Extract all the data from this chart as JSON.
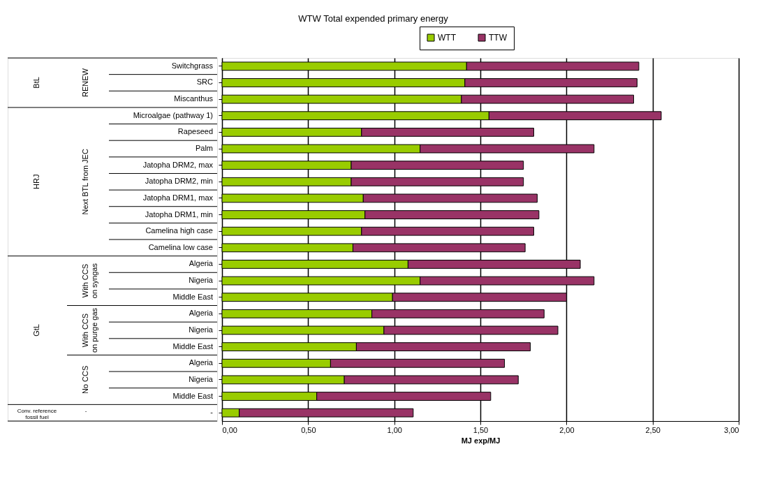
{
  "chart_data": {
    "type": "bar",
    "orientation": "horizontal",
    "stacked": true,
    "title": "WTW Total expended primary energy",
    "xlabel": "MJ exp/MJ",
    "categories": [
      "Switchgrass",
      "SRC",
      "Miscanthus",
      "Microalgae (pathway 1)",
      "Rapeseed",
      "Palm",
      "Jatopha DRM2, max",
      "Jatopha DRM2, min",
      "Jatopha DRM1, max",
      "Jatopha DRM1, min",
      "Camelina high case",
      "Camelina low case",
      "Algeria",
      "Nigeria",
      "Middle East",
      "Algeria",
      "Nigeria",
      "Middle East",
      "Algeria",
      "Nigeria",
      "Middle East",
      "-"
    ],
    "series": [
      {
        "name": "WTT",
        "color": "#99cc00",
        "values": [
          1.42,
          1.41,
          1.39,
          1.55,
          0.81,
          1.15,
          0.75,
          0.75,
          0.82,
          0.83,
          0.81,
          0.76,
          1.08,
          1.15,
          0.99,
          0.87,
          0.94,
          0.78,
          0.63,
          0.71,
          0.55,
          0.1
        ]
      },
      {
        "name": "TTW",
        "color": "#993366",
        "values": [
          1.0,
          1.0,
          1.0,
          1.0,
          1.0,
          1.01,
          1.0,
          1.0,
          1.01,
          1.01,
          1.0,
          1.0,
          1.0,
          1.01,
          1.01,
          1.0,
          1.01,
          1.01,
          1.01,
          1.01,
          1.01,
          1.01
        ]
      }
    ],
    "xlim": [
      0,
      3
    ],
    "xticks": [
      {
        "value": 0,
        "label": "0,00"
      },
      {
        "value": 0.5,
        "label": "0,50"
      },
      {
        "value": 1,
        "label": "1,00"
      },
      {
        "value": 1.5,
        "label": "1,50"
      },
      {
        "value": 2,
        "label": "2,00"
      },
      {
        "value": 2.5,
        "label": "2,50"
      },
      {
        "value": 3,
        "label": "3,00"
      }
    ],
    "grid": "x",
    "legend": "top right",
    "annotations": [
      "BtL",
      "RENEW",
      "HRJ",
      "Next BTL from JEC",
      "GtL",
      "With CCS\non syngas",
      "With CCS\non purge gas",
      "No CCS",
      "Conv. reference\nfossil fuel",
      "-"
    ]
  }
}
